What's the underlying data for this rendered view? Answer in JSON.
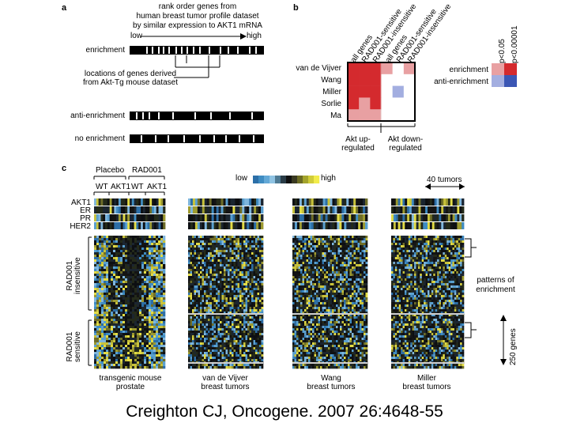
{
  "panel_a": {
    "label": "a",
    "caption_lines": [
      "rank order genes from",
      "human breast tumor profile dataset",
      "by similar expression to AKT1 mRNA"
    ],
    "low": "low",
    "high": "high",
    "rows": [
      "enrichment",
      "anti-enrichment",
      "no enrichment"
    ],
    "locations_lines": [
      "locations of genes derived",
      "from Akt-Tg mouse dataset"
    ]
  },
  "panel_b": {
    "label": "b",
    "col_labels": [
      "all genes",
      "RAD001-sensitive",
      "RAD001-insensitive",
      "all genes",
      "RAD001-sensitive",
      "RAD001-insensitive"
    ],
    "row_labels": [
      "van de Vijver",
      "Wang",
      "Miller",
      "Sorlie",
      "Ma"
    ],
    "group_labels": [
      [
        "Akt up-",
        "regulated"
      ],
      [
        "Akt down-",
        "regulated"
      ]
    ],
    "legend_cols": [
      "p<0.05",
      "p<0.00001"
    ],
    "legend_rows": [
      "enrichment",
      "anti-enrichment"
    ],
    "colors": {
      "enrich_strong": "#d42a2e",
      "enrich_weak": "#e8a0a2",
      "anti_strong": "#3b56b4",
      "anti_weak": "#a3aee0",
      "none": "#ffffff"
    },
    "cells": [
      [
        "s",
        "s",
        "s",
        "w",
        "n",
        "w"
      ],
      [
        "s",
        "s",
        "s",
        "n",
        "n",
        "n"
      ],
      [
        "s",
        "s",
        "s",
        "n",
        "aw",
        "n"
      ],
      [
        "s",
        "w",
        "s",
        "n",
        "n",
        "n"
      ],
      [
        "w",
        "w",
        "w",
        "n",
        "n",
        "n"
      ]
    ]
  },
  "panel_c": {
    "label": "c",
    "placebo": "Placebo",
    "rad001": "RAD001",
    "group_ticks": [
      "WT",
      "AKT1",
      "WT",
      "AKT1"
    ],
    "scale_low": "low",
    "scale_high": "high",
    "tumors_label": "40 tumors",
    "row_tracks": [
      "AKT1",
      "ER",
      "PR",
      "HER2"
    ],
    "side_labels": [
      [
        "RAD001",
        "insensitive"
      ],
      [
        "RAD001",
        "sensitive"
      ]
    ],
    "patterns_lines": [
      "patterns of",
      "enrichment"
    ],
    "genes_label": "250 genes",
    "heatmap_captions": [
      [
        "transgenic mouse",
        "prostate"
      ],
      [
        "van de Vijver",
        "breast tumors"
      ],
      [
        "Wang",
        "breast tumors"
      ],
      [
        "Miller",
        "breast tumors"
      ]
    ]
  },
  "citation": "Creighton CJ, Oncogene. 2007 26:4648-55"
}
